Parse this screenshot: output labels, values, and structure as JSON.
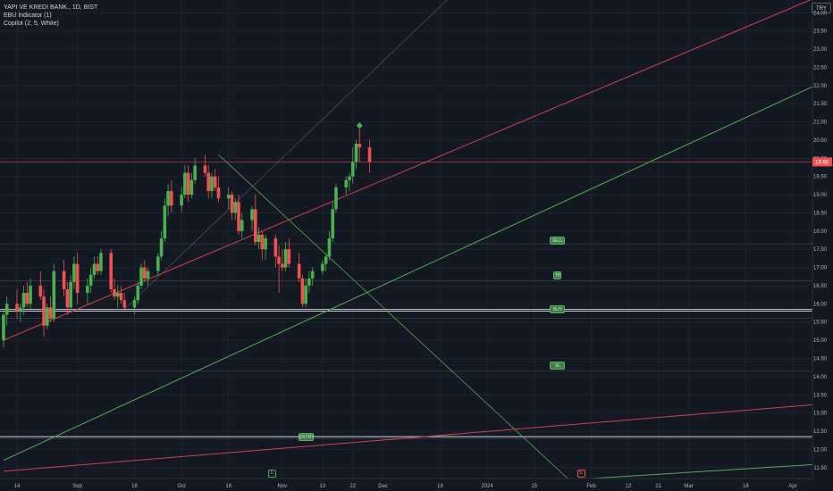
{
  "legend": {
    "symbol": "YAPI VE KREDI BANK., 1D, BIST",
    "indicator_1": "EBU Indicator (1)",
    "indicator_2": "Copilot (2, 5, White)"
  },
  "currency": "TRY",
  "current_price_label": "19.90",
  "colors": {
    "background": "#141823",
    "grid": "#1e222d",
    "up": "#26a69a",
    "up_body": "#4caf50",
    "down": "#ef5350",
    "axis_text": "#b2b5be",
    "red_line": "#c9444d",
    "green_line": "#4caf50",
    "white_line": "#d1d4dc",
    "price_tag": "#ef5350"
  },
  "chart_data": {
    "type": "candlestick",
    "title": "",
    "ylim": [
      11.2,
      24.35
    ],
    "y_ticks": [
      "24.00",
      "23.50",
      "23.00",
      "22.50",
      "22.00",
      "21.50",
      "21.00",
      "20.50",
      "20.00",
      "19.50",
      "19.00",
      "18.50",
      "18.00",
      "17.50",
      "17.00",
      "16.50",
      "16.00",
      "15.50",
      "15.00",
      "14.50",
      "14.00",
      "13.50",
      "13.00",
      "12.50",
      "12.00",
      "11.50"
    ],
    "x_ticks": [
      "14",
      "Sep",
      "18",
      "Oct",
      "16",
      "Nov",
      "13",
      "22",
      "Dec",
      "18",
      "2024",
      "15",
      "Feb",
      "12",
      "21",
      "Mar",
      "18",
      "Apr"
    ],
    "series": [
      {
        "date": "2023-08-10",
        "o": 15.0,
        "h": 15.8,
        "l": 14.8,
        "c": 15.7
      },
      {
        "date": "2023-08-11",
        "o": 15.7,
        "h": 16.2,
        "l": 15.4,
        "c": 16.0
      },
      {
        "date": "2023-08-14",
        "o": 16.0,
        "h": 16.4,
        "l": 15.6,
        "c": 15.8
      },
      {
        "date": "2023-08-15",
        "o": 15.8,
        "h": 16.0,
        "l": 15.5,
        "c": 15.9
      },
      {
        "date": "2023-08-16",
        "o": 15.9,
        "h": 16.5,
        "l": 15.7,
        "c": 16.3
      },
      {
        "date": "2023-08-17",
        "o": 16.3,
        "h": 16.6,
        "l": 15.9,
        "c": 16.0
      },
      {
        "date": "2023-08-18",
        "o": 16.0,
        "h": 16.7,
        "l": 15.8,
        "c": 16.5
      },
      {
        "date": "2023-08-21",
        "o": 16.5,
        "h": 16.9,
        "l": 16.1,
        "c": 16.2
      },
      {
        "date": "2023-08-22",
        "o": 16.2,
        "h": 16.4,
        "l": 15.1,
        "c": 15.4
      },
      {
        "date": "2023-08-23",
        "o": 15.4,
        "h": 16.0,
        "l": 15.3,
        "c": 15.9
      },
      {
        "date": "2023-08-24",
        "o": 15.9,
        "h": 16.2,
        "l": 15.5,
        "c": 15.6
      },
      {
        "date": "2023-08-25",
        "o": 15.6,
        "h": 17.1,
        "l": 15.5,
        "c": 16.9
      },
      {
        "date": "2023-08-28",
        "o": 16.9,
        "h": 17.2,
        "l": 16.2,
        "c": 16.4
      },
      {
        "date": "2023-08-29",
        "o": 16.4,
        "h": 16.6,
        "l": 15.7,
        "c": 15.9
      },
      {
        "date": "2023-08-30",
        "o": 15.9,
        "h": 16.8,
        "l": 15.8,
        "c": 16.6
      },
      {
        "date": "2023-08-31",
        "o": 16.6,
        "h": 17.3,
        "l": 16.4,
        "c": 17.1
      },
      {
        "date": "2023-09-01",
        "o": 17.1,
        "h": 17.4,
        "l": 16.0,
        "c": 16.3
      },
      {
        "date": "2023-09-04",
        "o": 16.3,
        "h": 16.7,
        "l": 16.0,
        "c": 16.5
      },
      {
        "date": "2023-09-05",
        "o": 16.5,
        "h": 17.0,
        "l": 16.3,
        "c": 16.8
      },
      {
        "date": "2023-09-06",
        "o": 16.8,
        "h": 17.3,
        "l": 16.7,
        "c": 17.1
      },
      {
        "date": "2023-09-07",
        "o": 17.1,
        "h": 17.3,
        "l": 16.8,
        "c": 16.9
      },
      {
        "date": "2023-09-08",
        "o": 16.9,
        "h": 17.5,
        "l": 16.8,
        "c": 17.4
      },
      {
        "date": "2023-09-11",
        "o": 17.4,
        "h": 17.5,
        "l": 16.3,
        "c": 16.4
      },
      {
        "date": "2023-09-12",
        "o": 16.4,
        "h": 16.7,
        "l": 16.1,
        "c": 16.2
      },
      {
        "date": "2023-09-13",
        "o": 16.2,
        "h": 16.5,
        "l": 15.9,
        "c": 16.3
      },
      {
        "date": "2023-09-14",
        "o": 16.3,
        "h": 16.5,
        "l": 16.0,
        "c": 16.1
      },
      {
        "date": "2023-09-15",
        "o": 16.1,
        "h": 16.3,
        "l": 15.8,
        "c": 15.9
      },
      {
        "date": "2023-09-18",
        "o": 15.9,
        "h": 16.2,
        "l": 15.7,
        "c": 16.1
      },
      {
        "date": "2023-09-19",
        "o": 16.1,
        "h": 16.6,
        "l": 16.0,
        "c": 16.5
      },
      {
        "date": "2023-09-20",
        "o": 16.5,
        "h": 17.1,
        "l": 16.4,
        "c": 17.0
      },
      {
        "date": "2023-09-21",
        "o": 17.0,
        "h": 17.2,
        "l": 16.6,
        "c": 16.7
      },
      {
        "date": "2023-09-22",
        "o": 16.7,
        "h": 17.0,
        "l": 16.5,
        "c": 16.9
      },
      {
        "date": "2023-09-25",
        "o": 16.9,
        "h": 17.4,
        "l": 16.8,
        "c": 17.3
      },
      {
        "date": "2023-09-26",
        "o": 17.3,
        "h": 18.0,
        "l": 17.2,
        "c": 17.8
      },
      {
        "date": "2023-09-27",
        "o": 17.8,
        "h": 18.9,
        "l": 17.7,
        "c": 18.7
      },
      {
        "date": "2023-09-28",
        "o": 18.7,
        "h": 19.3,
        "l": 18.4,
        "c": 19.1
      },
      {
        "date": "2023-09-29",
        "o": 19.1,
        "h": 19.4,
        "l": 18.5,
        "c": 18.7
      },
      {
        "date": "2023-10-02",
        "o": 18.7,
        "h": 19.2,
        "l": 18.5,
        "c": 19.0
      },
      {
        "date": "2023-10-03",
        "o": 19.0,
        "h": 19.8,
        "l": 18.9,
        "c": 19.6
      },
      {
        "date": "2023-10-04",
        "o": 19.6,
        "h": 19.8,
        "l": 18.8,
        "c": 19.0
      },
      {
        "date": "2023-10-05",
        "o": 19.0,
        "h": 19.6,
        "l": 18.9,
        "c": 19.4
      },
      {
        "date": "2023-10-06",
        "o": 19.4,
        "h": 20.0,
        "l": 19.3,
        "c": 19.8
      },
      {
        "date": "2023-10-09",
        "o": 19.8,
        "h": 20.1,
        "l": 19.5,
        "c": 19.6
      },
      {
        "date": "2023-10-10",
        "o": 19.6,
        "h": 19.8,
        "l": 18.9,
        "c": 19.1
      },
      {
        "date": "2023-10-11",
        "o": 19.1,
        "h": 19.6,
        "l": 18.9,
        "c": 19.5
      },
      {
        "date": "2023-10-12",
        "o": 19.5,
        "h": 19.7,
        "l": 19.1,
        "c": 19.2
      },
      {
        "date": "2023-10-13",
        "o": 19.2,
        "h": 19.5,
        "l": 18.8,
        "c": 18.9
      },
      {
        "date": "2023-10-16",
        "o": 18.9,
        "h": 19.2,
        "l": 18.6,
        "c": 19.0
      },
      {
        "date": "2023-10-17",
        "o": 19.0,
        "h": 19.1,
        "l": 18.3,
        "c": 18.5
      },
      {
        "date": "2023-10-18",
        "o": 18.5,
        "h": 18.9,
        "l": 18.3,
        "c": 18.8
      },
      {
        "date": "2023-10-19",
        "o": 18.8,
        "h": 19.0,
        "l": 17.9,
        "c": 18.0
      },
      {
        "date": "2023-10-20",
        "o": 18.0,
        "h": 18.5,
        "l": 17.8,
        "c": 18.3
      },
      {
        "date": "2023-10-23",
        "o": 18.3,
        "h": 18.7,
        "l": 18.0,
        "c": 18.6
      },
      {
        "date": "2023-10-24",
        "o": 18.6,
        "h": 19.0,
        "l": 17.6,
        "c": 17.7
      },
      {
        "date": "2023-10-25",
        "o": 17.7,
        "h": 18.1,
        "l": 17.5,
        "c": 17.9
      },
      {
        "date": "2023-10-26",
        "o": 17.9,
        "h": 18.0,
        "l": 17.2,
        "c": 17.5
      },
      {
        "date": "2023-10-27",
        "o": 17.5,
        "h": 17.9,
        "l": 17.2,
        "c": 17.8
      },
      {
        "date": "2023-10-30",
        "o": 17.8,
        "h": 17.9,
        "l": 17.0,
        "c": 17.3
      },
      {
        "date": "2023-10-31",
        "o": 17.3,
        "h": 17.6,
        "l": 16.3,
        "c": 17.1
      },
      {
        "date": "2023-11-01",
        "o": 17.1,
        "h": 17.5,
        "l": 16.9,
        "c": 17.0
      },
      {
        "date": "2023-11-02",
        "o": 17.0,
        "h": 17.7,
        "l": 16.9,
        "c": 17.5
      },
      {
        "date": "2023-11-03",
        "o": 17.5,
        "h": 17.8,
        "l": 17.0,
        "c": 17.1
      },
      {
        "date": "2023-11-06",
        "o": 17.1,
        "h": 17.4,
        "l": 16.6,
        "c": 16.7
      },
      {
        "date": "2023-11-07",
        "o": 16.7,
        "h": 16.8,
        "l": 15.9,
        "c": 16.0
      },
      {
        "date": "2023-11-08",
        "o": 16.0,
        "h": 16.7,
        "l": 15.9,
        "c": 16.5
      },
      {
        "date": "2023-11-09",
        "o": 16.5,
        "h": 16.9,
        "l": 16.3,
        "c": 16.7
      },
      {
        "date": "2023-11-10",
        "o": 16.7,
        "h": 17.0,
        "l": 16.5,
        "c": 16.9
      },
      {
        "date": "2023-11-13",
        "o": 16.9,
        "h": 17.2,
        "l": 16.8,
        "c": 17.1
      },
      {
        "date": "2023-11-14",
        "o": 17.1,
        "h": 17.4,
        "l": 16.9,
        "c": 17.3
      },
      {
        "date": "2023-11-15",
        "o": 17.3,
        "h": 18.0,
        "l": 17.2,
        "c": 17.8
      },
      {
        "date": "2023-11-16",
        "o": 17.8,
        "h": 18.8,
        "l": 17.7,
        "c": 18.6
      },
      {
        "date": "2023-11-17",
        "o": 18.6,
        "h": 19.3,
        "l": 18.5,
        "c": 19.2
      },
      {
        "date": "2023-11-20",
        "o": 19.2,
        "h": 19.5,
        "l": 19.0,
        "c": 19.4
      },
      {
        "date": "2023-11-21",
        "o": 19.4,
        "h": 19.6,
        "l": 19.1,
        "c": 19.5
      },
      {
        "date": "2023-11-22",
        "o": 19.5,
        "h": 20.3,
        "l": 19.3,
        "c": 19.9
      },
      {
        "date": "2023-11-23",
        "o": 19.9,
        "h": 20.5,
        "l": 19.7,
        "c": 20.4
      },
      {
        "date": "2023-11-24",
        "o": 20.4,
        "h": 20.9,
        "l": 19.9,
        "c": 20.3
      },
      {
        "date": "2023-11-27",
        "o": 20.3,
        "h": 20.5,
        "l": 19.6,
        "c": 19.9
      }
    ],
    "price_lines": [
      19.9,
      17.65,
      16.63,
      15.8,
      15.6,
      14.15,
      12.3
    ],
    "white_levels": [
      15.85,
      15.8,
      12.35
    ],
    "trendlines": {
      "red_1": [
        {
          "date": "2023-08-10",
          "price": 15.0
        },
        {
          "date": "2024-04-10",
          "price": 24.5
        }
      ],
      "red_2": [
        {
          "date": "2023-08-10",
          "price": 11.4
        },
        {
          "date": "2024-04-10",
          "price": 13.25
        }
      ],
      "green_1": [
        {
          "date": "2023-08-10",
          "price": 11.7
        },
        {
          "date": "2024-04-10",
          "price": 22.1
        }
      ],
      "green_2": [
        {
          "date": "2024-02-01",
          "price": 11.2
        },
        {
          "date": "2024-04-10",
          "price": 11.6
        }
      ],
      "green_desc": [
        {
          "date": "2023-10-13",
          "price": 20.1
        },
        {
          "date": "2024-01-25",
          "price": 11.2
        }
      ],
      "grey_diag": [
        {
          "date": "2023-09-15",
          "price": 15.85
        },
        {
          "date": "2023-12-20",
          "price": 24.35
        }
      ]
    },
    "signal_markers": [
      {
        "date": "2023-11-24",
        "price": 20.9,
        "label": "▲"
      }
    ],
    "level_markers": [
      {
        "date": "2024-01-22",
        "price": 17.75,
        "label": "SELL"
      },
      {
        "date": "2024-01-22",
        "price": 16.78,
        "label": "TP"
      },
      {
        "date": "2024-01-22",
        "price": 15.85,
        "label": "BUY"
      },
      {
        "date": "2024-01-22",
        "price": 14.3,
        "label": "SL"
      },
      {
        "date": "2023-11-08",
        "price": 12.35,
        "label": "ENTRY"
      }
    ]
  }
}
